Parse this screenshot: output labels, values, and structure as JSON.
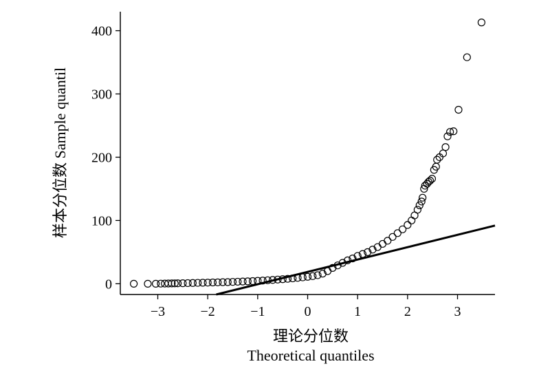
{
  "chart_data": {
    "type": "scatter",
    "title": "",
    "xlabel": "理论分位数",
    "xlabel_en": "Theoretical quantiles",
    "ylabel": "样本分位数 Sample quantil",
    "xlim": [
      -3.75,
      3.75
    ],
    "ylim": [
      -17,
      430
    ],
    "x_ticks": [
      -3,
      -2,
      -1,
      0,
      1,
      2,
      3
    ],
    "y_ticks": [
      0,
      100,
      200,
      300,
      400
    ],
    "grid": false,
    "legend": "none",
    "marker_color": "#000000",
    "line_color": "#000000",
    "reference_line": {
      "x": [
        -1.83,
        3.75
      ],
      "y": [
        -17,
        92
      ]
    },
    "series": [
      {
        "points": [
          [
            -3.48,
            0
          ],
          [
            -3.2,
            0
          ],
          [
            -3.04,
            0
          ],
          [
            -2.94,
            0.2
          ],
          [
            -2.86,
            0.3
          ],
          [
            -2.79,
            0.4
          ],
          [
            -2.72,
            0.5
          ],
          [
            -2.66,
            0.6
          ],
          [
            -2.6,
            0.7
          ],
          [
            -2.5,
            0.8
          ],
          [
            -2.4,
            1.0
          ],
          [
            -2.3,
            1.2
          ],
          [
            -2.2,
            1.4
          ],
          [
            -2.1,
            1.6
          ],
          [
            -2.0,
            1.8
          ],
          [
            -1.9,
            2.0
          ],
          [
            -1.8,
            2.2
          ],
          [
            -1.7,
            2.4
          ],
          [
            -1.6,
            2.6
          ],
          [
            -1.5,
            2.9
          ],
          [
            -1.4,
            3.2
          ],
          [
            -1.3,
            3.5
          ],
          [
            -1.2,
            3.8
          ],
          [
            -1.1,
            4.2
          ],
          [
            -1.0,
            4.6
          ],
          [
            -0.9,
            5.0
          ],
          [
            -0.8,
            5.5
          ],
          [
            -0.7,
            6.0
          ],
          [
            -0.6,
            6.6
          ],
          [
            -0.5,
            7.2
          ],
          [
            -0.4,
            7.8
          ],
          [
            -0.3,
            8.5
          ],
          [
            -0.2,
            9.3
          ],
          [
            -0.1,
            10.1
          ],
          [
            0.0,
            11.0
          ],
          [
            0.1,
            12.0
          ],
          [
            0.2,
            13.5
          ],
          [
            0.3,
            16.0
          ],
          [
            0.4,
            20.0
          ],
          [
            0.5,
            25.0
          ],
          [
            0.6,
            29.0
          ],
          [
            0.7,
            33.0
          ],
          [
            0.8,
            37.0
          ],
          [
            0.9,
            40.0
          ],
          [
            1.0,
            44.0
          ],
          [
            1.1,
            47.0
          ],
          [
            1.2,
            50.0
          ],
          [
            1.3,
            54.0
          ],
          [
            1.4,
            58.0
          ],
          [
            1.5,
            63.0
          ],
          [
            1.6,
            68.0
          ],
          [
            1.7,
            74.0
          ],
          [
            1.8,
            80.0
          ],
          [
            1.9,
            86.0
          ],
          [
            2.0,
            93.0
          ],
          [
            2.08,
            100.0
          ],
          [
            2.14,
            108.0
          ],
          [
            2.2,
            117.0
          ],
          [
            2.24,
            124.0
          ],
          [
            2.28,
            130.0
          ],
          [
            2.3,
            136.0
          ],
          [
            2.33,
            150.0
          ],
          [
            2.35,
            155.0
          ],
          [
            2.39,
            158.0
          ],
          [
            2.42,
            161.0
          ],
          [
            2.45,
            163.0
          ],
          [
            2.49,
            166.0
          ],
          [
            2.53,
            180.0
          ],
          [
            2.57,
            185.0
          ],
          [
            2.59,
            196.0
          ],
          [
            2.64,
            200.0
          ],
          [
            2.71,
            206.0
          ],
          [
            2.76,
            216.0
          ],
          [
            2.8,
            233.0
          ],
          [
            2.85,
            240.0
          ],
          [
            2.92,
            241.0
          ],
          [
            3.02,
            275.0
          ],
          [
            3.19,
            358.0
          ],
          [
            3.48,
            413.0
          ]
        ]
      }
    ]
  }
}
